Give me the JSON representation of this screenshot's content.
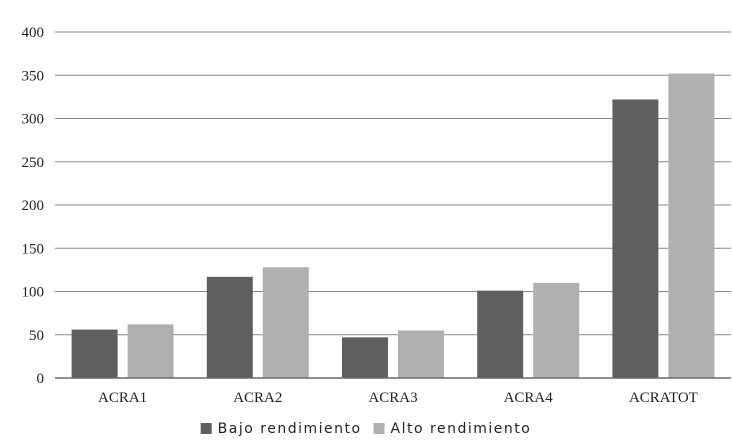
{
  "chart_data": {
    "type": "bar",
    "categories": [
      "ACRA1",
      "ACRA2",
      "ACRA3",
      "ACRA4",
      "ACRATOT"
    ],
    "series": [
      {
        "name": "Bajo rendimiento",
        "values": [
          56,
          117,
          47,
          101,
          322
        ],
        "color": "#5f5f5f"
      },
      {
        "name": "Alto rendimiento",
        "values": [
          62,
          128,
          55,
          110,
          352
        ],
        "color": "#b0b0b0"
      }
    ],
    "title": "",
    "xlabel": "",
    "ylabel": "",
    "ylim": [
      0,
      400
    ],
    "yticks": [
      "0",
      "50",
      "100",
      "150",
      "200",
      "250",
      "300",
      "350",
      "400"
    ],
    "grid": true,
    "legend_position": "bottom"
  }
}
